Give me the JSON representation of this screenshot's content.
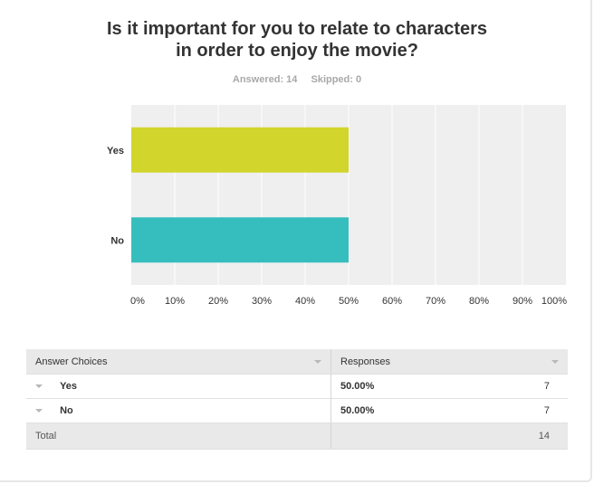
{
  "question": {
    "title_line1": "Is it important for you to relate to characters",
    "title_line2": "in order to enjoy the movie?",
    "answered": "Answered: 14",
    "skipped": "Skipped: 0"
  },
  "chart_data": {
    "type": "bar",
    "orientation": "horizontal",
    "categories": [
      "Yes",
      "No"
    ],
    "values": [
      50,
      50
    ],
    "colors": [
      "#d1d52c",
      "#36bebf"
    ],
    "xlim": [
      0,
      100
    ],
    "x_ticks": [
      "0%",
      "10%",
      "20%",
      "30%",
      "40%",
      "50%",
      "60%",
      "70%",
      "80%",
      "90%",
      "100%"
    ],
    "grid": true,
    "title": "",
    "xlabel": "",
    "ylabel": ""
  },
  "table": {
    "headers": [
      "Answer Choices",
      "Responses"
    ],
    "rows": [
      {
        "choice": "Yes",
        "percent": "50.00%",
        "count": "7"
      },
      {
        "choice": "No",
        "percent": "50.00%",
        "count": "7"
      }
    ],
    "total_label": "Total",
    "total_count": "14"
  }
}
